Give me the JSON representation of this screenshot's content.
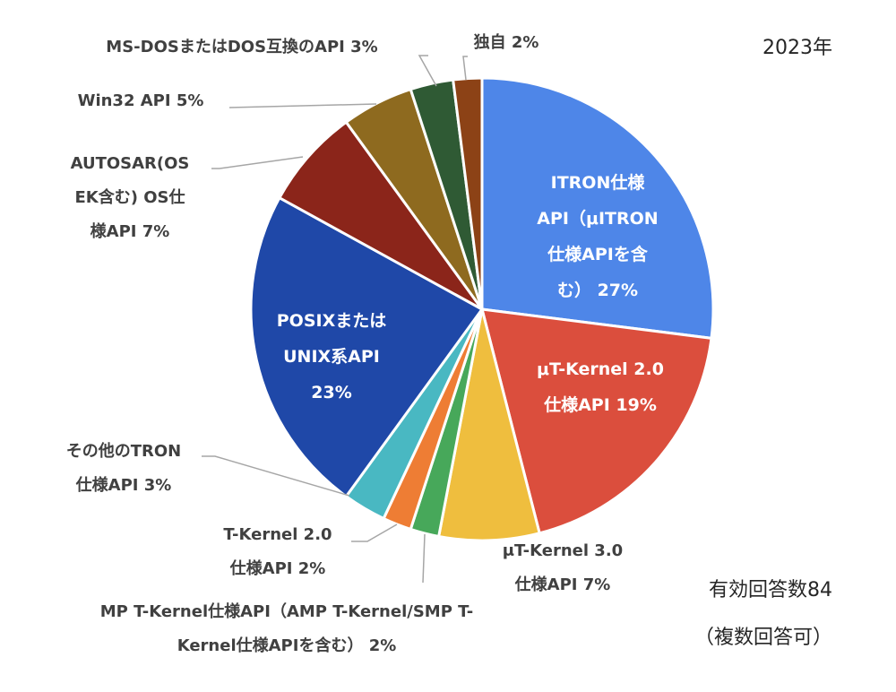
{
  "chart_data": {
    "type": "pie",
    "year_label": "2023年",
    "note_lines": [
      "有効回答数84",
      "（複数回答可）"
    ],
    "slices": [
      {
        "label_lines": [
          "ITRON仕様",
          "API（μITRON",
          "仕様APIを含",
          "む） 27%"
        ],
        "value": 27,
        "color": "#4e86e8",
        "placement": "inside"
      },
      {
        "label_lines": [
          "μT-Kernel 2.0",
          "仕様API 19%"
        ],
        "value": 19,
        "color": "#db4e3d",
        "placement": "inside"
      },
      {
        "label_lines": [
          "μT-Kernel 3.0",
          "仕様API 7%"
        ],
        "value": 7,
        "color": "#efbe3e",
        "placement": "outside"
      },
      {
        "label_lines": [
          "MP T-Kernel仕様API（AMP T-Kernel/SMP T-",
          "Kernel仕様APIを含む） 2%"
        ],
        "value": 2,
        "color": "#47a85a",
        "placement": "outside"
      },
      {
        "label_lines": [
          "T-Kernel 2.0",
          "仕様API 2%"
        ],
        "value": 2,
        "color": "#ee7d34",
        "placement": "outside"
      },
      {
        "label_lines": [
          "その他のTRON",
          "仕様API 3%"
        ],
        "value": 3,
        "color": "#49b8c2",
        "placement": "outside"
      },
      {
        "label_lines": [
          "POSIXまたは",
          "UNIX系API",
          "23%"
        ],
        "value": 23,
        "color": "#1f48a8",
        "placement": "inside"
      },
      {
        "label_lines": [
          "AUTOSAR(OS",
          "EK含む) OS仕",
          "様API 7%"
        ],
        "value": 7,
        "color": "#8b251a",
        "placement": "outside"
      },
      {
        "label_lines": [
          "Win32 API 5%"
        ],
        "value": 5,
        "color": "#8e6a1f",
        "placement": "outside"
      },
      {
        "label_lines": [
          "MS-DOSまたはDOS互換のAPI 3%"
        ],
        "value": 3,
        "color": "#2f5a34",
        "placement": "outside"
      },
      {
        "label_lines": [
          "独自 2%"
        ],
        "value": 2,
        "color": "#8c4216",
        "placement": "outside"
      }
    ]
  }
}
